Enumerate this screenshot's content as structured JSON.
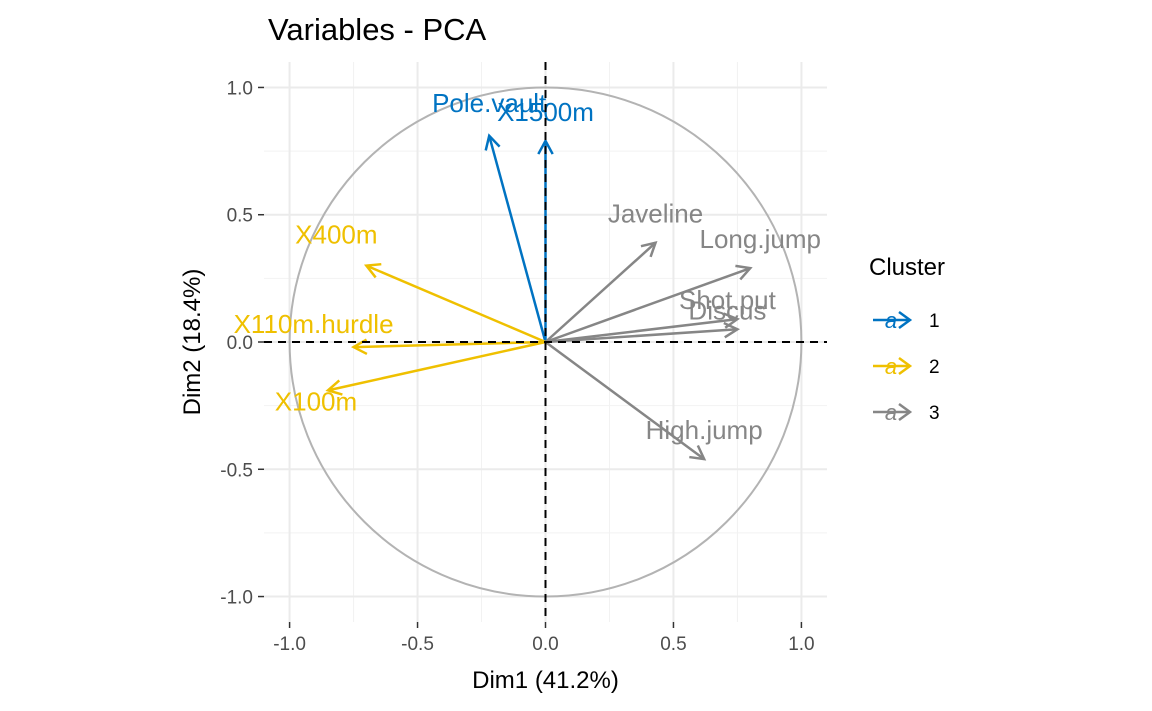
{
  "chart_data": {
    "type": "scatter",
    "subtype": "pca-variable-correlation-circle",
    "title": "Variables - PCA",
    "xlabel": "Dim1 (41.2%)",
    "ylabel": "Dim2 (18.4%)",
    "xlim": [
      -1.1,
      1.1
    ],
    "ylim": [
      -1.1,
      1.1
    ],
    "x_ticks": [
      -1.0,
      -0.5,
      0.0,
      0.5,
      1.0
    ],
    "y_ticks": [
      -1.0,
      -0.5,
      0.0,
      0.5,
      1.0
    ],
    "x_tick_labels": [
      "-1.0",
      "-0.5",
      "0.0",
      "0.5",
      "1.0"
    ],
    "y_tick_labels": [
      "-1.0",
      "-0.5",
      "0.0",
      "0.5",
      "1.0"
    ],
    "grid": true,
    "unit_circle": true,
    "reference_lines": {
      "x": 0,
      "y": 0,
      "style": "dashed"
    },
    "legend": {
      "title": "Cluster",
      "placement": "right",
      "glyph": "a",
      "entries": [
        {
          "label": "1",
          "color": "#0073C2"
        },
        {
          "label": "2",
          "color": "#EFC000"
        },
        {
          "label": "3",
          "color": "#868686"
        }
      ]
    },
    "series": [
      {
        "name": "1",
        "color": "#0073C2",
        "points": [
          {
            "label": "Pole.vault",
            "x": -0.22,
            "y": 0.81
          },
          {
            "label": "X1500m",
            "x": 0.0,
            "y": 0.79
          }
        ]
      },
      {
        "name": "2",
        "color": "#EFC000",
        "points": [
          {
            "label": "X400m",
            "x": -0.7,
            "y": 0.3
          },
          {
            "label": "X110m.hurdle",
            "x": -0.75,
            "y": -0.02
          },
          {
            "label": "X100m",
            "x": -0.85,
            "y": -0.19
          }
        ]
      },
      {
        "name": "3",
        "color": "#868686",
        "points": [
          {
            "label": "Javeline",
            "x": 0.43,
            "y": 0.39
          },
          {
            "label": "Long.jump",
            "x": 0.8,
            "y": 0.29
          },
          {
            "label": "Shot.put",
            "x": 0.75,
            "y": 0.09
          },
          {
            "label": "Discus",
            "x": 0.75,
            "y": 0.05
          },
          {
            "label": "High.jump",
            "x": 0.62,
            "y": -0.46
          }
        ]
      }
    ]
  }
}
